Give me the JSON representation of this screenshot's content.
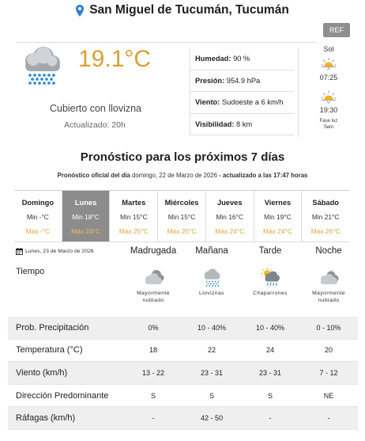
{
  "header": {
    "location": "San Miguel de Tucumán, Tucumán",
    "pin_icon": "map-pin-icon",
    "ref_button": "REF"
  },
  "current": {
    "icon": "cloud-drizzle-icon",
    "temperature": "19.1°C",
    "condition": "Cubierto con llovizna",
    "updated": "Actualizado: 20h",
    "details": [
      {
        "label": "Humedad:",
        "value": "90 %"
      },
      {
        "label": "Presión:",
        "value": "954.9 hPa"
      },
      {
        "label": "Viento:",
        "value": "Sudoeste a 6 km/h"
      },
      {
        "label": "Visibilidad:",
        "value": "8 km"
      }
    ],
    "sun": {
      "title": "Sol",
      "sunrise_icon": "sunrise-icon",
      "sunrise": "07:25",
      "sunset_icon": "sunset-icon",
      "sunset": "19:30",
      "moon_line_1": "Fase luz",
      "moon_line_2": "Sem"
    }
  },
  "forecast": {
    "title": "Pronóstico para los próximos 7 días",
    "subtitle_prefix": "Pronóstico oficial del día",
    "subtitle_date": "domingo, 22 de Marzo de 2026",
    "subtitle_suffix": "- actualizado a las 17:47 horas",
    "days": [
      {
        "name": "Domingo",
        "min": "Min -°C",
        "max": "Máx -°C",
        "selected": false
      },
      {
        "name": "Lunes",
        "min": "Min 18°C",
        "max": "Máx 24°C",
        "selected": true
      },
      {
        "name": "Martes",
        "min": "Min 15°C",
        "max": "Máx 25°C",
        "selected": false
      },
      {
        "name": "Miércoles",
        "min": "Min 15°C",
        "max": "Máx 25°C",
        "selected": false
      },
      {
        "name": "Jueves",
        "min": "Min 16°C",
        "max": "Máx 24°C",
        "selected": false
      },
      {
        "name": "Viernes",
        "min": "Min 19°C",
        "max": "Máx 24°C",
        "selected": false
      },
      {
        "name": "Sábado",
        "min": "Min 21°C",
        "max": "Máx 26°C",
        "selected": false
      }
    ]
  },
  "detail": {
    "calendar_icon": "calendar-icon",
    "date": "Lunes, 23 de Marzo de 2026",
    "periods": [
      "Madrugada",
      "Mañana",
      "Tarde",
      "Noche"
    ],
    "weather_label": "Tiempo",
    "weather": [
      {
        "icon": "mostly-cloudy-icon",
        "text": "Mayormente nublado"
      },
      {
        "icon": "drizzle-icon",
        "text": "Lloviznas"
      },
      {
        "icon": "showers-icon",
        "text": "Chaparrones"
      },
      {
        "icon": "mostly-cloudy-night-icon",
        "text": "Mayormente nublado"
      }
    ],
    "rows": [
      {
        "label": "Prob. Precipitación",
        "values": [
          "0%",
          "10 - 40%",
          "10 - 40%",
          "0 - 10%"
        ]
      },
      {
        "label": "Temperatura (°C)",
        "values": [
          "18",
          "22",
          "24",
          "20"
        ]
      },
      {
        "label": "Viento (km/h)",
        "values": [
          "13 - 22",
          "23 - 31",
          "23 - 31",
          "7 - 12"
        ]
      },
      {
        "label": "Dirección Predominante",
        "values": [
          "S",
          "S",
          "S",
          "NE"
        ]
      },
      {
        "label": "Ráfagas (km/h)",
        "values": [
          "-",
          "42 - 50",
          "-",
          "-"
        ]
      }
    ]
  },
  "colors": {
    "temperature": "#d8a035",
    "max_temp": "#e0a23a",
    "selected_day_bg": "#8c8c8c",
    "pin": "#2f80d0",
    "row_stripe": "#efefef"
  }
}
